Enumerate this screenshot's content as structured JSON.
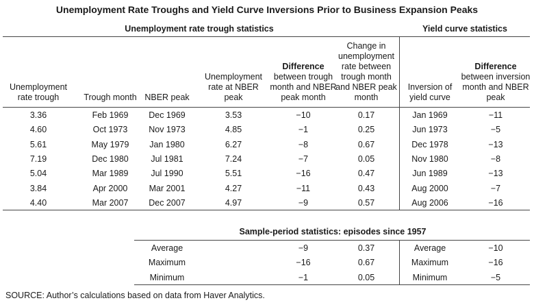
{
  "title": "Unemployment Rate Troughs and Yield Curve Inversions Prior to Business Expansion Peaks",
  "sections": {
    "left": "Unemployment rate trough statistics",
    "right": "Yield curve statistics"
  },
  "headers": {
    "c1": "Unemployment rate trough",
    "c2": "Trough month",
    "c3": "NBER peak",
    "c4": "Unemployment rate at NBER peak",
    "c5_bold": "Difference",
    "c5_rest": "between trough month and NBER peak month",
    "c6": "Change in unemployment rate between trough month and NBER peak month",
    "c7": "Inversion of yield curve",
    "c8_bold": "Difference",
    "c8_rest": "between inversion month and NBER peak"
  },
  "rows": [
    [
      "3.36",
      "Feb 1969",
      "Dec 1969",
      "3.53",
      "−10",
      "0.17",
      "Jan 1969",
      "−11"
    ],
    [
      "4.60",
      "Oct 1973",
      "Nov 1973",
      "4.85",
      "−1",
      "0.25",
      "Jun 1973",
      "−5"
    ],
    [
      "5.61",
      "May 1979",
      "Jan 1980",
      "6.27",
      "−8",
      "0.67",
      "Dec 1978",
      "−13"
    ],
    [
      "7.19",
      "Dec 1980",
      "Jul 1981",
      "7.24",
      "−7",
      "0.05",
      "Nov 1980",
      "−8"
    ],
    [
      "5.04",
      "Mar 1989",
      "Jul 1990",
      "5.51",
      "−16",
      "0.47",
      "Jun 1989",
      "−13"
    ],
    [
      "3.84",
      "Apr 2000",
      "Mar 2001",
      "4.27",
      "−11",
      "0.43",
      "Aug 2000",
      "−7"
    ],
    [
      "4.40",
      "Mar 2007",
      "Dec 2007",
      "4.97",
      "−9",
      "0.57",
      "Aug 2006",
      "−16"
    ]
  ],
  "sample": {
    "title": "Sample-period statistics: episodes since 1957",
    "rows": [
      [
        "Average",
        "−9",
        "0.37",
        "Average",
        "−10"
      ],
      [
        "Maximum",
        "−16",
        "0.67",
        "Maximum",
        "−16"
      ],
      [
        "Minimum",
        "−1",
        "0.05",
        "Minimum",
        "−5"
      ]
    ]
  },
  "source": "SOURCE:  Author’s calculations based on data from Haver Analytics."
}
